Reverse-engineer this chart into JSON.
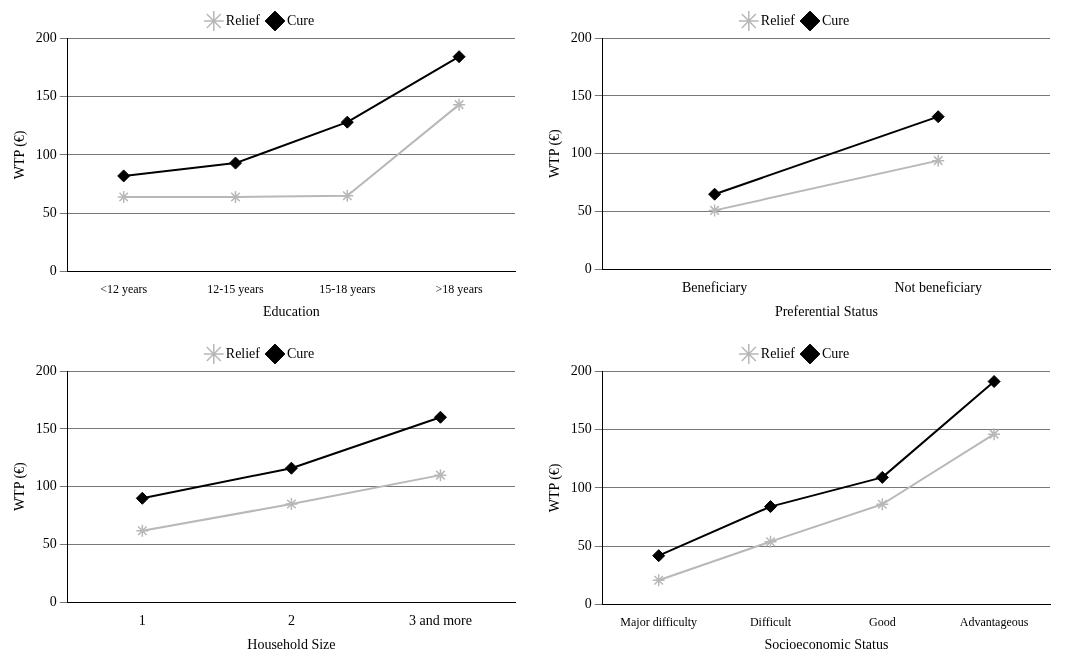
{
  "chart_data": [
    {
      "type": "line",
      "xlabel": "Education",
      "ylabel": "WTP (€)",
      "categories": [
        "<12 years",
        "12-15 years",
        "15-18 years",
        ">18 years"
      ],
      "series": [
        {
          "name": "Relief",
          "color": "#b8b8b8",
          "marker": "cross",
          "values": [
            64,
            64,
            65,
            143
          ]
        },
        {
          "name": "Cure",
          "color": "#000000",
          "marker": "diamond",
          "values": [
            82,
            93,
            128,
            184
          ]
        }
      ],
      "ylim": [
        0,
        200
      ],
      "yticks": [
        0,
        50,
        100,
        150,
        200
      ],
      "grid": "y",
      "legend": "top"
    },
    {
      "type": "line",
      "xlabel": "Preferential Status",
      "ylabel": "WTP (€)",
      "categories": [
        "Beneficiary",
        "Not beneficiary"
      ],
      "series": [
        {
          "name": "Relief",
          "color": "#b8b8b8",
          "marker": "cross",
          "values": [
            51,
            94
          ]
        },
        {
          "name": "Cure",
          "color": "#000000",
          "marker": "diamond",
          "values": [
            65,
            132
          ]
        }
      ],
      "ylim": [
        0,
        200
      ],
      "yticks": [
        0,
        50,
        100,
        150,
        200
      ],
      "grid": "y",
      "legend": "top"
    },
    {
      "type": "line",
      "xlabel": "Household Size",
      "ylabel": "WTP (€)",
      "categories": [
        "1",
        "2",
        "3 and more"
      ],
      "series": [
        {
          "name": "Relief",
          "color": "#b8b8b8",
          "marker": "cross",
          "values": [
            62,
            85,
            110
          ]
        },
        {
          "name": "Cure",
          "color": "#000000",
          "marker": "diamond",
          "values": [
            90,
            116,
            160
          ]
        }
      ],
      "ylim": [
        0,
        200
      ],
      "yticks": [
        0,
        50,
        100,
        150,
        200
      ],
      "grid": "y",
      "legend": "top"
    },
    {
      "type": "line",
      "xlabel": "Socioeconomic Status",
      "ylabel": "WTP (€)",
      "categories": [
        "Major difficulty",
        "Difficult",
        "Good",
        "Advantageous"
      ],
      "series": [
        {
          "name": "Relief",
          "color": "#b8b8b8",
          "marker": "cross",
          "values": [
            21,
            54,
            86,
            146
          ]
        },
        {
          "name": "Cure",
          "color": "#000000",
          "marker": "diamond",
          "values": [
            42,
            84,
            109,
            191
          ]
        }
      ],
      "ylim": [
        0,
        200
      ],
      "yticks": [
        0,
        50,
        100,
        150,
        200
      ],
      "grid": "y",
      "legend": "top"
    }
  ]
}
